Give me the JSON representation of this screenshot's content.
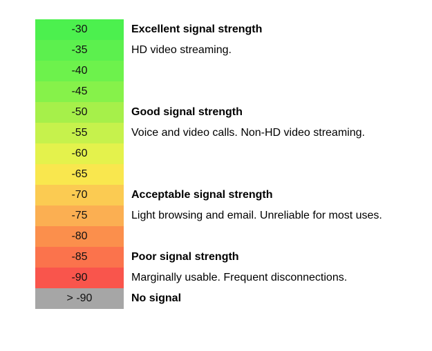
{
  "scale": [
    {
      "label": "-30",
      "color": "#4CF04E"
    },
    {
      "label": "-35",
      "color": "#5CF04E"
    },
    {
      "label": "-40",
      "color": "#6DF24C"
    },
    {
      "label": "-45",
      "color": "#86F24A"
    },
    {
      "label": "-50",
      "color": "#A6F04A"
    },
    {
      "label": "-55",
      "color": "#C6F24C"
    },
    {
      "label": "-60",
      "color": "#E4F24C"
    },
    {
      "label": "-65",
      "color": "#F9E74E"
    },
    {
      "label": "-70",
      "color": "#FBCB52"
    },
    {
      "label": "-75",
      "color": "#FBAF52"
    },
    {
      "label": "-80",
      "color": "#FB8F4C"
    },
    {
      "label": "-85",
      "color": "#FB734C"
    },
    {
      "label": "-90",
      "color": "#F9554C"
    },
    {
      "label": "> -90",
      "color": "#A6A6A6"
    }
  ],
  "levels": {
    "excellent": {
      "title": "Excellent signal strength",
      "desc": "HD video streaming."
    },
    "good": {
      "title": "Good signal strength",
      "desc": "Voice and video calls. Non-HD video streaming."
    },
    "acceptable": {
      "title": "Acceptable signal strength",
      "desc": "Light browsing and email. Unreliable for most uses."
    },
    "poor": {
      "title": "Poor signal strength",
      "desc": "Marginally usable. Frequent disconnections."
    },
    "none": {
      "title": "No signal"
    }
  }
}
